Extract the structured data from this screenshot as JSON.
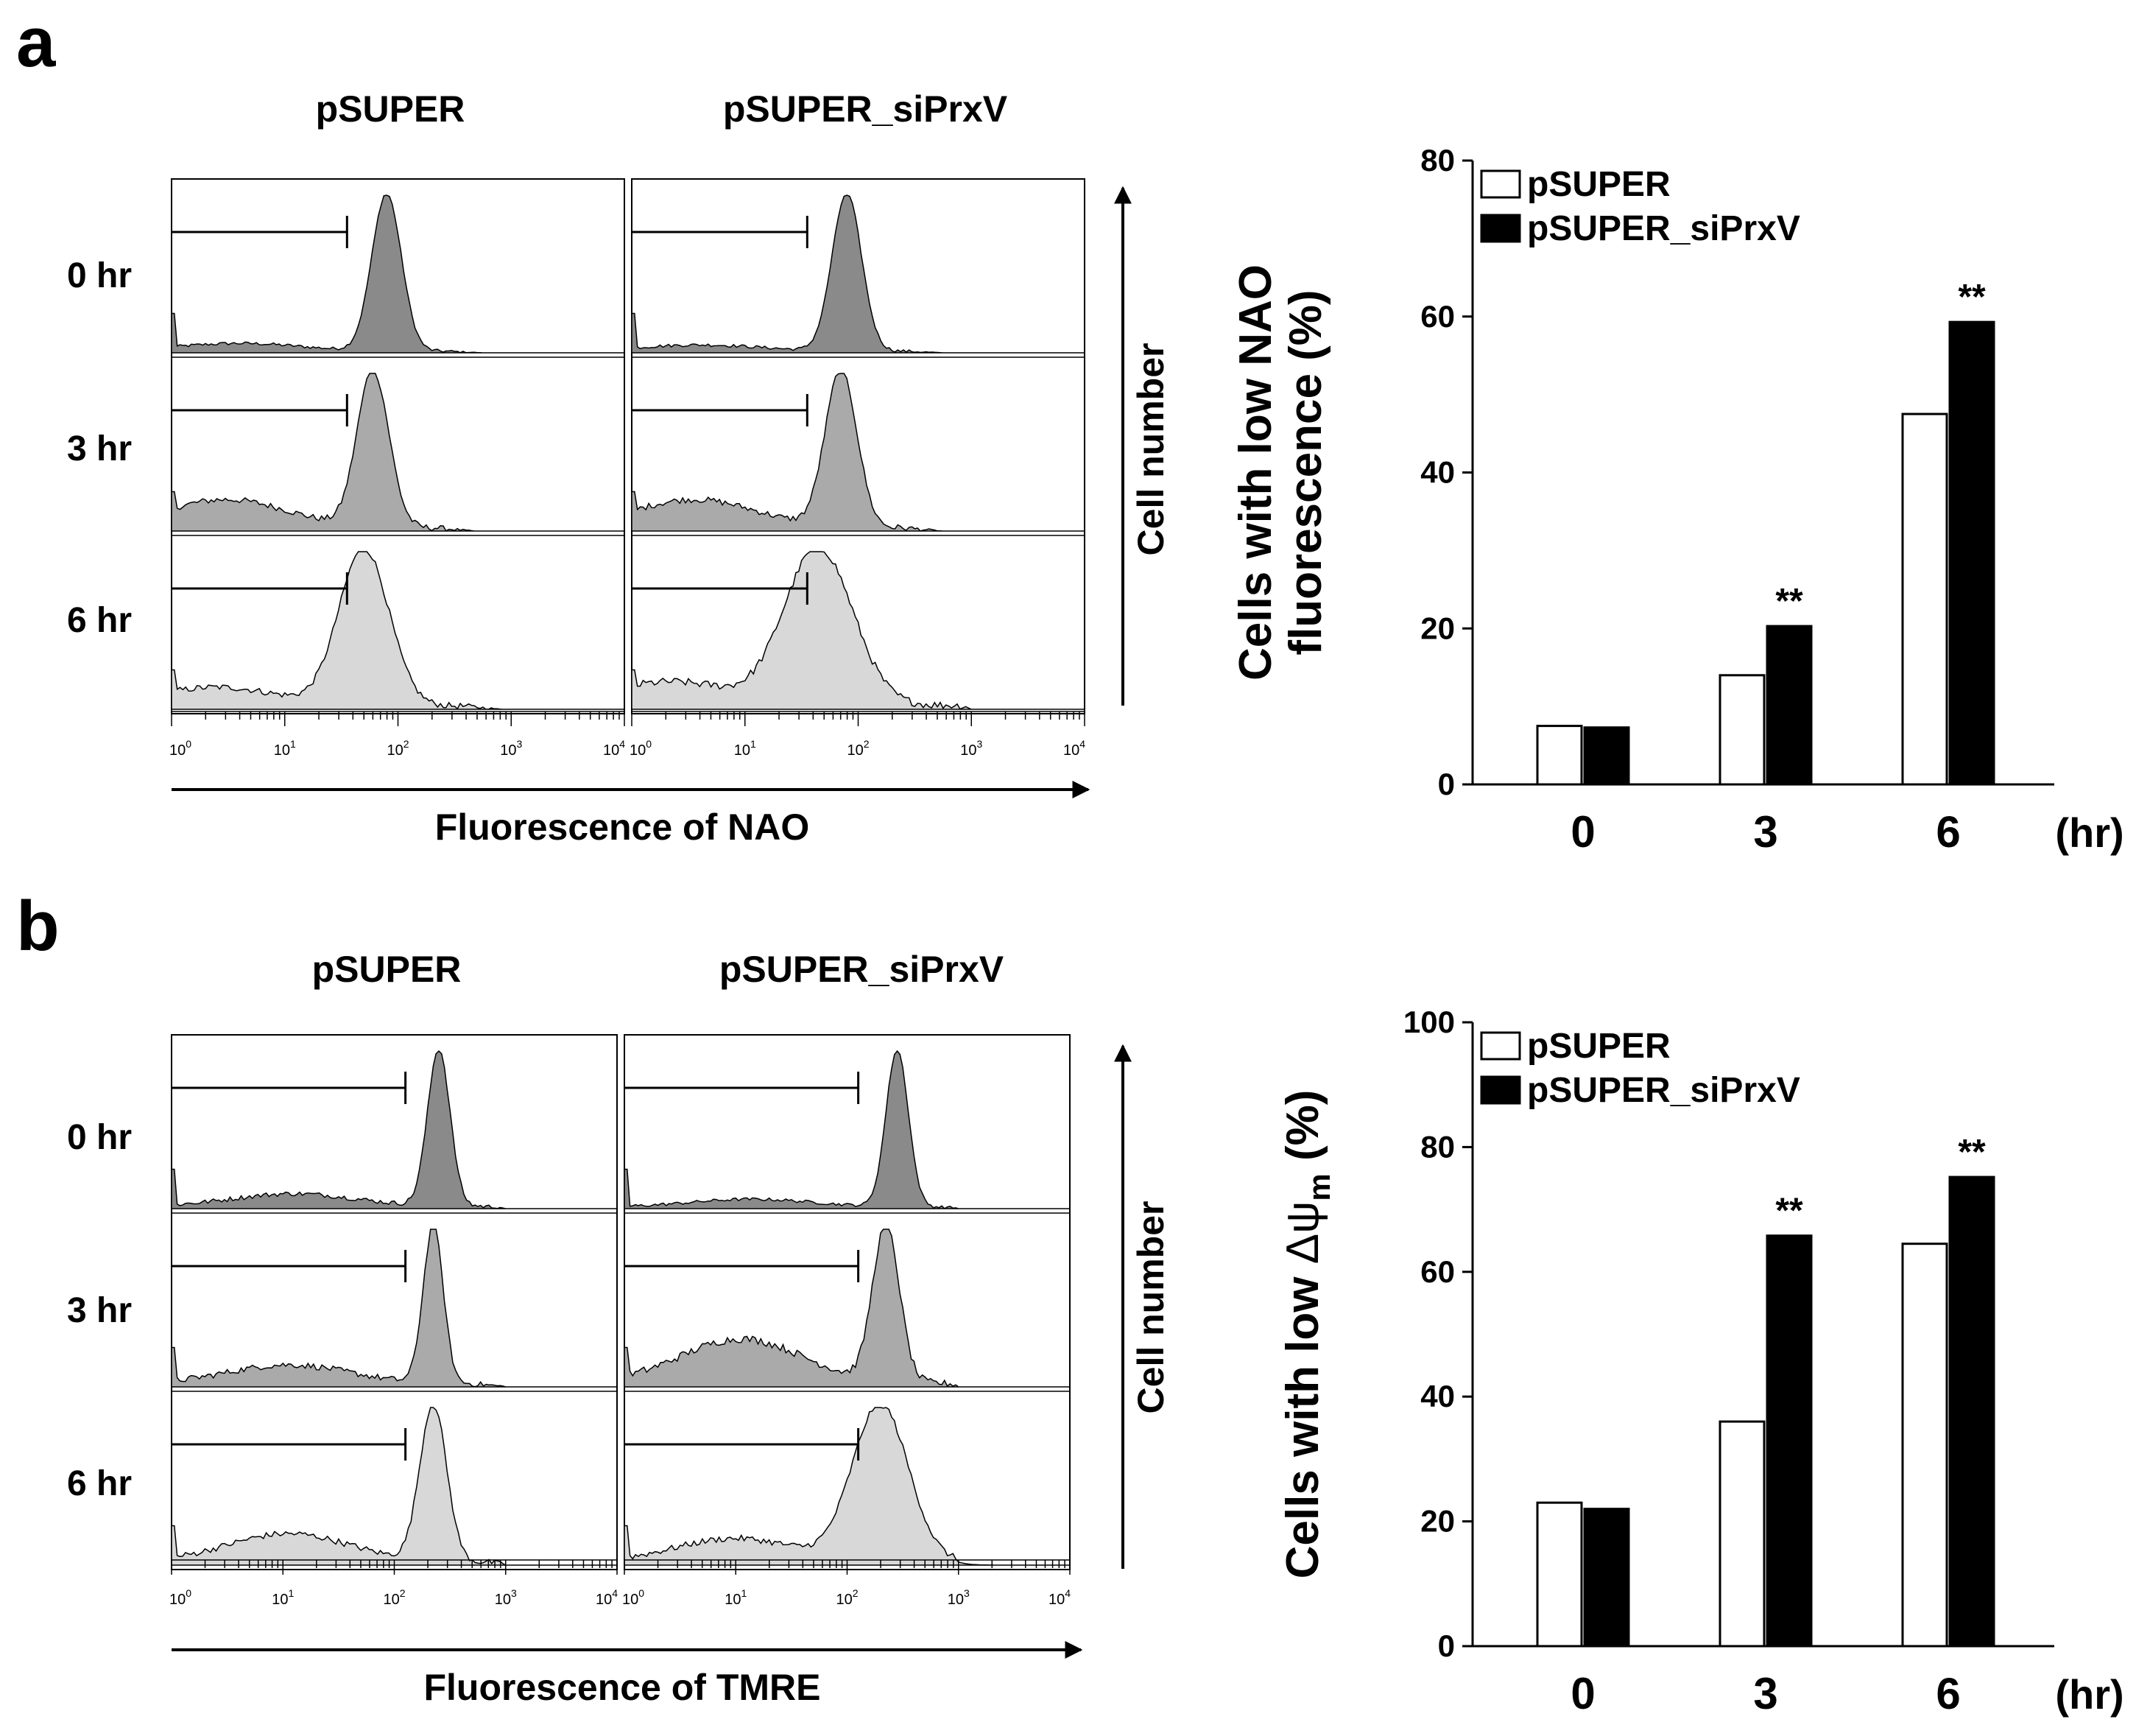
{
  "panels": [
    {
      "id": "a",
      "letter": "a",
      "flow": {
        "conditions": [
          "pSUPER",
          "pSUPER_siPrxV"
        ],
        "timepoints": [
          "0 hr",
          "3 hr",
          "6 hr"
        ],
        "x_axis_label": "Fluorescence of  NAO",
        "y_axis_label": "Cell number",
        "decade_ticks": [
          "10",
          "10",
          "10",
          "10",
          "10"
        ],
        "decade_exponents": [
          "0",
          "1",
          "2",
          "3",
          "4"
        ],
        "log_range": [
          0,
          4
        ],
        "gate_end_log": 1.55,
        "histograms": [
          [
            {
              "peak_log": 1.9,
              "sigma": 0.13,
              "low_level": 0.05,
              "noise": 0.02
            },
            {
              "peak_log": 1.78,
              "sigma": 0.14,
              "low_level": 0.18,
              "noise": 0.04
            },
            {
              "peak_log": 1.7,
              "sigma": 0.22,
              "low_level": 0.12,
              "noise": 0.04
            }
          ],
          [
            {
              "peak_log": 1.9,
              "sigma": 0.13,
              "low_level": 0.04,
              "noise": 0.02
            },
            {
              "peak_log": 1.85,
              "sigma": 0.14,
              "low_level": 0.18,
              "noise": 0.04
            },
            {
              "peak_log": 1.65,
              "sigma": 0.3,
              "low_level": 0.15,
              "noise": 0.05
            }
          ]
        ]
      },
      "chart_data": {
        "type": "bar",
        "categories": [
          "0",
          "3",
          "6"
        ],
        "x_unit": "(hr)",
        "series": [
          {
            "name": "pSUPER",
            "values": [
              7.5,
              14,
              47.5
            ],
            "color": "#ffffff"
          },
          {
            "name": "pSUPER_siPrxV",
            "values": [
              7.3,
              20.3,
              59.3
            ],
            "color": "#000000"
          }
        ],
        "significance": [
          "",
          "**",
          "**"
        ],
        "ylabel": "Cells with low NAO fluorescence (%)",
        "ylabel_line1": "Cells with low NAO",
        "ylabel_line2": "fluorescence (%)",
        "ylim": [
          0,
          80
        ],
        "yticks": [
          "0",
          "20",
          "40",
          "60",
          "80"
        ],
        "legend": "top-left"
      }
    },
    {
      "id": "b",
      "letter": "b",
      "flow": {
        "conditions": [
          "pSUPER",
          "pSUPER_siPrxV"
        ],
        "timepoints": [
          "0 hr",
          "3 hr",
          "6 hr"
        ],
        "x_axis_label": "Fluorescence of  TMRE",
        "y_axis_label": "Cell number",
        "decade_ticks": [
          "10",
          "10",
          "10",
          "10",
          "10"
        ],
        "decade_exponents": [
          "0",
          "1",
          "2",
          "3",
          "4"
        ],
        "log_range": [
          0,
          4
        ],
        "gate_end_log": 2.1,
        "histograms": [
          [
            {
              "peak_log": 2.4,
              "sigma": 0.1,
              "low_level": 0.08,
              "noise": 0.03
            },
            {
              "peak_log": 2.35,
              "sigma": 0.09,
              "low_level": 0.12,
              "noise": 0.04
            },
            {
              "peak_log": 2.35,
              "sigma": 0.12,
              "low_level": 0.18,
              "noise": 0.04
            }
          ],
          [
            {
              "peak_log": 2.45,
              "sigma": 0.1,
              "low_level": 0.05,
              "noise": 0.02
            },
            {
              "peak_log": 2.35,
              "sigma": 0.12,
              "low_level": 0.28,
              "noise": 0.05
            },
            {
              "peak_log": 2.3,
              "sigma": 0.25,
              "low_level": 0.15,
              "noise": 0.04
            }
          ]
        ]
      },
      "chart_data": {
        "type": "bar",
        "categories": [
          "0",
          "3",
          "6"
        ],
        "x_unit": "(hr)",
        "series": [
          {
            "name": "pSUPER",
            "values": [
              23,
              36,
              64.5
            ],
            "color": "#ffffff"
          },
          {
            "name": "pSUPER_siPrxV",
            "values": [
              22,
              65.8,
              75.2
            ],
            "color": "#000000"
          }
        ],
        "significance": [
          "",
          "**",
          "**"
        ],
        "ylabel": "Cells with low Δψm (%)",
        "ylabel_prefix": "Cells with low ",
        "ylabel_symbol": "Δψ",
        "ylabel_subscript": "m",
        "ylabel_suffix": " (%)",
        "ylim": [
          0,
          100
        ],
        "yticks": [
          "0",
          "20",
          "40",
          "60",
          "80",
          "100"
        ],
        "legend": "top-left"
      }
    }
  ],
  "colors": {
    "peak_row0": "#8a8a8a",
    "peak_row1": "#aaaaaa",
    "peak_row2": "#d8d8d8",
    "line": "#000000"
  }
}
